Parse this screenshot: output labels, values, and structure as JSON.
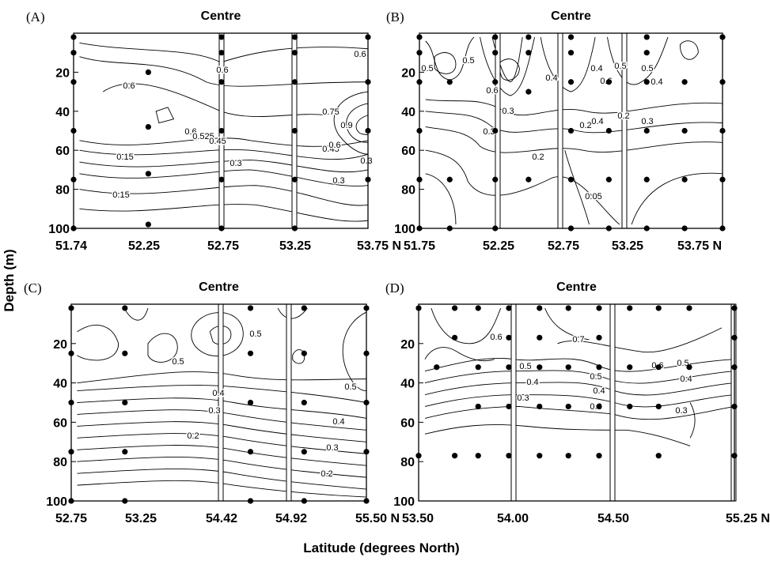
{
  "chart_data": {
    "type": "contour",
    "ylabel": "Depth (m)",
    "xlabel": "Latitude (degrees North)",
    "panels": [
      {
        "letter": "(A)",
        "title": "Centre",
        "xticks": [
          "51.74",
          "52.25",
          "52.75",
          "53.25",
          "53.75 N"
        ],
        "xlim": [
          51.74,
          53.75
        ],
        "ylim": [
          0,
          100
        ],
        "yticks": [
          "20",
          "40",
          "60",
          "80",
          "100"
        ],
        "front_lines": [
          52.75,
          53.25
        ],
        "contour_labels": [
          "0.6",
          "0.6",
          "0.6",
          "0.9",
          "0.75",
          "0.6",
          "0.525",
          "0.45",
          "0.3",
          "0.3",
          "0.15",
          "0.15",
          "0.45",
          "0.3",
          "0.6"
        ],
        "stations": [
          {
            "lat": 51.74,
            "depth": 2
          },
          {
            "lat": 51.74,
            "depth": 10
          },
          {
            "lat": 51.74,
            "depth": 25
          },
          {
            "lat": 51.74,
            "depth": 50
          },
          {
            "lat": 51.74,
            "depth": 75
          },
          {
            "lat": 51.74,
            "depth": 100
          },
          {
            "lat": 52.25,
            "depth": 20
          },
          {
            "lat": 52.25,
            "depth": 48
          },
          {
            "lat": 52.25,
            "depth": 72
          },
          {
            "lat": 52.25,
            "depth": 98
          },
          {
            "lat": 52.75,
            "depth": 2
          },
          {
            "lat": 52.75,
            "depth": 10
          },
          {
            "lat": 52.75,
            "depth": 25
          },
          {
            "lat": 52.75,
            "depth": 50
          },
          {
            "lat": 52.75,
            "depth": 75
          },
          {
            "lat": 52.75,
            "depth": 100
          },
          {
            "lat": 53.25,
            "depth": 2
          },
          {
            "lat": 53.25,
            "depth": 10
          },
          {
            "lat": 53.25,
            "depth": 25
          },
          {
            "lat": 53.25,
            "depth": 50
          },
          {
            "lat": 53.25,
            "depth": 75
          },
          {
            "lat": 53.25,
            "depth": 100
          },
          {
            "lat": 53.75,
            "depth": 2
          },
          {
            "lat": 53.75,
            "depth": 25
          },
          {
            "lat": 53.75,
            "depth": 50
          },
          {
            "lat": 53.75,
            "depth": 75
          }
        ]
      },
      {
        "letter": "(B)",
        "title": "Centre",
        "xticks": [
          "51.75",
          "52.25",
          "52.75",
          "53.25",
          "53.75 N"
        ],
        "xlim": [
          51.75,
          53.75
        ],
        "ylim": [
          0,
          100
        ],
        "yticks": [
          "20",
          "40",
          "60",
          "80",
          "100"
        ],
        "front_lines": [
          52.25,
          52.75,
          53.25
        ],
        "contour_labels": [
          "0.5",
          "0.5",
          "0.6",
          "0.5",
          "0.4",
          "0.4",
          "0.6",
          "0.5",
          "0.4",
          "0.4",
          "0.3",
          "0.2",
          "0.3",
          "0.3",
          "0.2",
          "0.2",
          "0.05"
        ],
        "stations": [
          {
            "lat": 51.75,
            "depth": 2
          },
          {
            "lat": 51.75,
            "depth": 10
          },
          {
            "lat": 51.75,
            "depth": 25
          },
          {
            "lat": 51.75,
            "depth": 50
          },
          {
            "lat": 51.75,
            "depth": 75
          },
          {
            "lat": 51.75,
            "depth": 100
          },
          {
            "lat": 51.95,
            "depth": 25
          },
          {
            "lat": 51.95,
            "depth": 75
          },
          {
            "lat": 51.95,
            "depth": 100
          },
          {
            "lat": 52.25,
            "depth": 2
          },
          {
            "lat": 52.25,
            "depth": 10
          },
          {
            "lat": 52.25,
            "depth": 25
          },
          {
            "lat": 52.25,
            "depth": 50
          },
          {
            "lat": 52.25,
            "depth": 75
          },
          {
            "lat": 52.25,
            "depth": 100
          },
          {
            "lat": 52.47,
            "depth": 2
          },
          {
            "lat": 52.47,
            "depth": 10
          },
          {
            "lat": 52.47,
            "depth": 30
          },
          {
            "lat": 52.47,
            "depth": 75
          },
          {
            "lat": 52.75,
            "depth": 2
          },
          {
            "lat": 52.75,
            "depth": 10
          },
          {
            "lat": 52.75,
            "depth": 25
          },
          {
            "lat": 52.75,
            "depth": 50
          },
          {
            "lat": 52.75,
            "depth": 75
          },
          {
            "lat": 52.75,
            "depth": 100
          },
          {
            "lat": 53.0,
            "depth": 25
          },
          {
            "lat": 53.0,
            "depth": 50
          },
          {
            "lat": 53.0,
            "depth": 75
          },
          {
            "lat": 53.0,
            "depth": 100
          },
          {
            "lat": 53.25,
            "depth": 2
          },
          {
            "lat": 53.25,
            "depth": 10
          },
          {
            "lat": 53.25,
            "depth": 25
          },
          {
            "lat": 53.25,
            "depth": 50
          },
          {
            "lat": 53.25,
            "depth": 75
          },
          {
            "lat": 53.25,
            "depth": 100
          },
          {
            "lat": 53.5,
            "depth": 25
          },
          {
            "lat": 53.5,
            "depth": 50
          },
          {
            "lat": 53.5,
            "depth": 75
          },
          {
            "lat": 53.5,
            "depth": 100
          },
          {
            "lat": 53.75,
            "depth": 2
          },
          {
            "lat": 53.75,
            "depth": 25
          },
          {
            "lat": 53.75,
            "depth": 50
          },
          {
            "lat": 53.75,
            "depth": 75
          },
          {
            "lat": 53.75,
            "depth": 100
          }
        ]
      },
      {
        "letter": "(C)",
        "title": "Centre",
        "xticks": [
          "52.75",
          "53.25",
          "54.42",
          "54.92",
          "55.50 N"
        ],
        "xlim": [
          52.75,
          55.5
        ],
        "ylim": [
          0,
          100
        ],
        "yticks": [
          "20",
          "40",
          "60",
          "80",
          "100"
        ],
        "front_lines": [
          54.42,
          54.92
        ],
        "contour_labels": [
          "0.5",
          "0.5",
          "0.5",
          "0.4",
          "0.3",
          "0.2",
          "0.4",
          "0.3",
          "0.2"
        ],
        "stations": [
          {
            "lat": 52.75,
            "depth": 2
          },
          {
            "lat": 52.75,
            "depth": 25
          },
          {
            "lat": 52.75,
            "depth": 50
          },
          {
            "lat": 52.75,
            "depth": 75
          },
          {
            "lat": 52.75,
            "depth": 100
          },
          {
            "lat": 53.25,
            "depth": 2
          },
          {
            "lat": 53.25,
            "depth": 25
          },
          {
            "lat": 53.25,
            "depth": 50
          },
          {
            "lat": 53.25,
            "depth": 75
          },
          {
            "lat": 53.25,
            "depth": 100
          },
          {
            "lat": 54.42,
            "depth": 2
          },
          {
            "lat": 54.42,
            "depth": 25
          },
          {
            "lat": 54.42,
            "depth": 50
          },
          {
            "lat": 54.42,
            "depth": 75
          },
          {
            "lat": 54.42,
            "depth": 100
          },
          {
            "lat": 54.92,
            "depth": 2
          },
          {
            "lat": 54.92,
            "depth": 25
          },
          {
            "lat": 54.92,
            "depth": 50
          },
          {
            "lat": 54.92,
            "depth": 75
          },
          {
            "lat": 54.92,
            "depth": 100
          },
          {
            "lat": 55.5,
            "depth": 2
          },
          {
            "lat": 55.5,
            "depth": 25
          },
          {
            "lat": 55.5,
            "depth": 50
          },
          {
            "lat": 55.5,
            "depth": 75
          },
          {
            "lat": 55.5,
            "depth": 100
          }
        ]
      },
      {
        "letter": "(D)",
        "title": "Centre",
        "xticks": [
          "53.50",
          "54.00",
          "54.50",
          "55.25 N"
        ],
        "xlim": [
          53.5,
          55.25
        ],
        "ylim": [
          0,
          100
        ],
        "yticks": [
          "20",
          "40",
          "60",
          "80",
          "100"
        ],
        "front_lines": [
          54.0,
          54.5,
          55.25
        ],
        "contour_labels": [
          "0.6",
          "0.5",
          "0.4",
          "0.3",
          "0.5",
          "0.4",
          "0.3",
          "0.7",
          "0.6",
          "0.5",
          "0.4",
          "0.3"
        ],
        "stations": [
          {
            "lat": 53.5,
            "depth": 2
          },
          {
            "lat": 53.5,
            "depth": 77
          },
          {
            "lat": 53.6,
            "depth": 32
          },
          {
            "lat": 53.7,
            "depth": 2
          },
          {
            "lat": 53.7,
            "depth": 17
          },
          {
            "lat": 53.7,
            "depth": 77
          },
          {
            "lat": 53.83,
            "depth": 2
          },
          {
            "lat": 53.83,
            "depth": 32
          },
          {
            "lat": 53.83,
            "depth": 52
          },
          {
            "lat": 53.83,
            "depth": 77
          },
          {
            "lat": 54.0,
            "depth": 2
          },
          {
            "lat": 54.0,
            "depth": 17
          },
          {
            "lat": 54.0,
            "depth": 32
          },
          {
            "lat": 54.0,
            "depth": 52
          },
          {
            "lat": 54.0,
            "depth": 77
          },
          {
            "lat": 54.17,
            "depth": 2
          },
          {
            "lat": 54.17,
            "depth": 17
          },
          {
            "lat": 54.17,
            "depth": 32
          },
          {
            "lat": 54.17,
            "depth": 52
          },
          {
            "lat": 54.17,
            "depth": 77
          },
          {
            "lat": 54.33,
            "depth": 2
          },
          {
            "lat": 54.33,
            "depth": 32
          },
          {
            "lat": 54.33,
            "depth": 52
          },
          {
            "lat": 54.33,
            "depth": 77
          },
          {
            "lat": 54.5,
            "depth": 2
          },
          {
            "lat": 54.5,
            "depth": 17
          },
          {
            "lat": 54.5,
            "depth": 32
          },
          {
            "lat": 54.5,
            "depth": 52
          },
          {
            "lat": 54.5,
            "depth": 77
          },
          {
            "lat": 54.67,
            "depth": 2
          },
          {
            "lat": 54.67,
            "depth": 32
          },
          {
            "lat": 54.67,
            "depth": 52
          },
          {
            "lat": 54.83,
            "depth": 2
          },
          {
            "lat": 54.83,
            "depth": 32
          },
          {
            "lat": 54.83,
            "depth": 52
          },
          {
            "lat": 54.83,
            "depth": 77
          },
          {
            "lat": 55.0,
            "depth": 2
          },
          {
            "lat": 55.0,
            "depth": 32
          },
          {
            "lat": 55.25,
            "depth": 2
          },
          {
            "lat": 55.25,
            "depth": 17
          },
          {
            "lat": 55.25,
            "depth": 32
          },
          {
            "lat": 55.25,
            "depth": 52
          },
          {
            "lat": 55.25,
            "depth": 77
          }
        ]
      }
    ]
  }
}
